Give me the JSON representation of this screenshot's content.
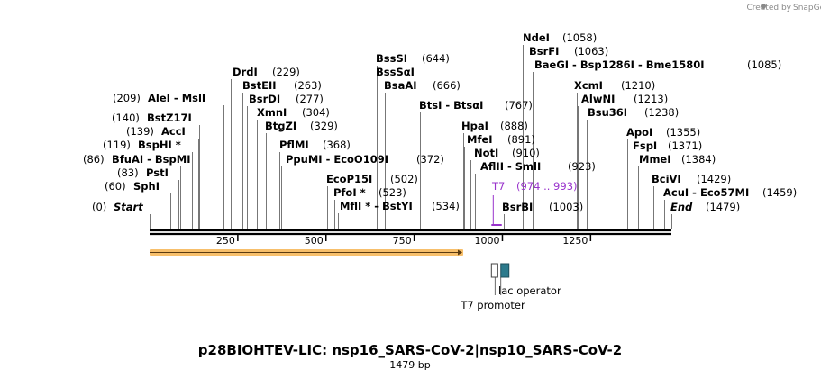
{
  "credit": {
    "text": "Created by",
    "brand": "SnapGene"
  },
  "title": "p28BIOHTEV-LIC: nsp16_SARS-CoV-2|nsp10_SARS-CoV-2",
  "subtitle": "1479 bp",
  "sequence_length": 1479,
  "axis_ticks": [
    "250",
    "500",
    "750",
    "1000",
    "1250"
  ],
  "sites": [
    {
      "id": "start",
      "text": "(0)",
      "name": "Start",
      "pos": 0
    },
    {
      "id": "sphi",
      "text": "(60)",
      "name": "SphI",
      "pos": 60
    },
    {
      "id": "psti",
      "text": "(83)",
      "name": "PstI",
      "pos": 83
    },
    {
      "id": "bfuai",
      "text": "(86)",
      "name": "BfuAI  -  BspMI",
      "pos": 86
    },
    {
      "id": "bsphi",
      "text": "(119)",
      "name": "BspHI *",
      "pos": 119
    },
    {
      "id": "acci",
      "text": "(139)",
      "name": "AccI",
      "pos": 139
    },
    {
      "id": "bstz17i",
      "text": "(140)",
      "name": "BstZ17I",
      "pos": 140
    },
    {
      "id": "alei",
      "text": "(209)",
      "name": "AleI  -  MslI",
      "pos": 209
    },
    {
      "id": "drdi",
      "text": "(229)",
      "name": "DrdI",
      "pos": 229
    },
    {
      "id": "bsteii",
      "text": "(263)",
      "name": "BstEII",
      "pos": 263
    },
    {
      "id": "bsrdi",
      "text": "(277)",
      "name": "BsrDI",
      "pos": 277
    },
    {
      "id": "xmni",
      "text": "(304)",
      "name": "XmnI",
      "pos": 304
    },
    {
      "id": "btgzi",
      "text": "(329)",
      "name": "BtgZI",
      "pos": 329
    },
    {
      "id": "pflmi",
      "text": "(368)",
      "name": "PflMI",
      "pos": 368
    },
    {
      "id": "ppumi",
      "text": "(372)",
      "name": "PpuMI  -  EcoO109I",
      "pos": 372
    },
    {
      "id": "ecop15i",
      "text": "(502)",
      "name": "EcoP15I",
      "pos": 502
    },
    {
      "id": "pfoi",
      "text": "(523)",
      "name": "PfoI *",
      "pos": 523
    },
    {
      "id": "mfli",
      "text": "(534)",
      "name": "MflI *  -  BstYI",
      "pos": 534
    },
    {
      "id": "bsssi",
      "text": "(644)",
      "name": "BssSI",
      "pos": 644
    },
    {
      "id": "bssnai",
      "text": "",
      "name": "BssSαI",
      "pos": 644
    },
    {
      "id": "bsaai",
      "text": "(666)",
      "name": "BsaAI",
      "pos": 666
    },
    {
      "id": "btsi",
      "text": "(767)",
      "name": "BtsI  -  BtsαI",
      "pos": 767
    },
    {
      "id": "hpai",
      "text": "(888)",
      "name": "HpaI",
      "pos": 888
    },
    {
      "id": "mfei",
      "text": "(891)",
      "name": "MfeI",
      "pos": 891
    },
    {
      "id": "noti",
      "text": "(910)",
      "name": "NotI",
      "pos": 910
    },
    {
      "id": "aflii",
      "text": "(923)",
      "name": "AflII  -  SmlI",
      "pos": 923
    },
    {
      "id": "bsrbi",
      "text": "(1003)",
      "name": "BsrBI",
      "pos": 1003
    },
    {
      "id": "ndei",
      "text": "(1058)",
      "name": "NdeI",
      "pos": 1058
    },
    {
      "id": "bsrfi",
      "text": "(1063)",
      "name": "BsrFI",
      "pos": 1063
    },
    {
      "id": "baegi",
      "text": "(1085)",
      "name": "BaeGI  -  Bsp1286I  -  Bme1580I",
      "pos": 1085
    },
    {
      "id": "xcmi",
      "text": "(1210)",
      "name": "XcmI",
      "pos": 1210
    },
    {
      "id": "alwni",
      "text": "(1213)",
      "name": "AlwNI",
      "pos": 1213
    },
    {
      "id": "bsu36i",
      "text": "(1238)",
      "name": "Bsu36I",
      "pos": 1238
    },
    {
      "id": "apoi",
      "text": "(1355)",
      "name": "ApoI",
      "pos": 1355
    },
    {
      "id": "fspi",
      "text": "(1371)",
      "name": "FspI",
      "pos": 1371
    },
    {
      "id": "mmei",
      "text": "(1384)",
      "name": "MmeI",
      "pos": 1384
    },
    {
      "id": "bcivi",
      "text": "(1429)",
      "name": "BciVI",
      "pos": 1429
    },
    {
      "id": "acui",
      "text": "(1459)",
      "name": "AcuI  -  Eco57MI",
      "pos": 1459
    },
    {
      "id": "end",
      "text": "(1479)",
      "name": "End",
      "pos": 1479
    }
  ],
  "t7_site": {
    "name": "T7",
    "range": "(974 .. 993)",
    "start": 974,
    "end": 993,
    "color": "#9933cc"
  },
  "features": [
    {
      "id": "orf",
      "type": "arrow",
      "start": 0,
      "end": 889,
      "color": "#f4a93a"
    },
    {
      "id": "t7_promoter",
      "label": "T7 promoter",
      "start": 974,
      "end": 992
    },
    {
      "id": "lac_operator",
      "label": "lac operator",
      "start": 993,
      "end": 1017,
      "color": "#2c7a8c"
    }
  ],
  "colors": {
    "backbone": "#000000",
    "callout": "#555555"
  }
}
